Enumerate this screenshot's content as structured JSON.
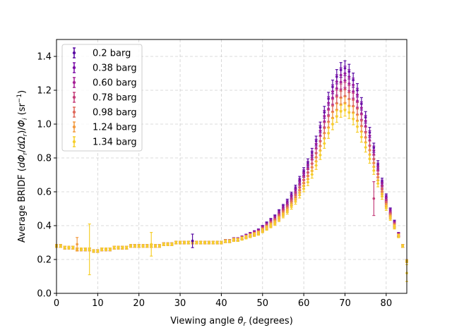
{
  "chart_data": {
    "type": "scatter",
    "title": "",
    "xlabel_parts": [
      "Viewing angle ",
      "θ",
      "r",
      " (degrees)"
    ],
    "ylabel_parts": [
      "Average BRIDF (",
      "dΦ",
      "r",
      "/",
      "dΩ",
      "r",
      ")/",
      "Φ",
      "i",
      " (sr",
      "−1",
      ")"
    ],
    "xlim": [
      0,
      85
    ],
    "ylim": [
      0,
      1.5
    ],
    "xticks": [
      0,
      10,
      20,
      30,
      40,
      50,
      60,
      70,
      80
    ],
    "yticks": [
      0.0,
      0.2,
      0.4,
      0.6,
      0.8,
      1.0,
      1.2,
      1.4
    ],
    "xtick_labels": [
      "0",
      "10",
      "20",
      "30",
      "40",
      "50",
      "60",
      "70",
      "80"
    ],
    "ytick_labels": [
      "0.0",
      "0.2",
      "0.4",
      "0.6",
      "0.8",
      "1.0",
      "1.2",
      "1.4"
    ],
    "grid": true,
    "grid_style": "dashed",
    "legend_position": "top-left",
    "error_bars": true,
    "x": [
      0,
      1,
      2,
      3,
      4,
      5,
      6,
      7,
      8,
      9,
      10,
      11,
      12,
      13,
      14,
      15,
      16,
      17,
      18,
      19,
      20,
      21,
      22,
      23,
      24,
      25,
      26,
      27,
      28,
      29,
      30,
      31,
      32,
      33,
      34,
      35,
      36,
      37,
      38,
      39,
      40,
      41,
      42,
      43,
      44,
      45,
      46,
      47,
      48,
      49,
      50,
      51,
      52,
      53,
      54,
      55,
      56,
      57,
      58,
      59,
      60,
      61,
      62,
      63,
      64,
      65,
      66,
      67,
      68,
      69,
      70,
      71,
      72,
      73,
      74,
      75,
      76,
      77,
      78,
      79,
      80,
      81,
      82,
      83,
      84,
      85
    ],
    "series": [
      {
        "name": "0.2 barg",
        "color": "#5a0ca3",
        "scale": 1.0
      },
      {
        "name": "0.38 barg",
        "color": "#7c0fa8",
        "scale": 0.97
      },
      {
        "name": "0.60 barg",
        "color": "#a72197",
        "scale": 0.93
      },
      {
        "name": "0.78 barg",
        "color": "#c53f7b",
        "scale": 0.88
      },
      {
        "name": "0.98 barg",
        "color": "#e06a5c",
        "scale": 0.84
      },
      {
        "name": "1.24 barg",
        "color": "#f39a3f",
        "scale": 0.8
      },
      {
        "name": "1.34 barg",
        "color": "#f6cf2c",
        "scale": 0.76
      }
    ],
    "base_values": [
      0.28,
      0.28,
      0.27,
      0.27,
      0.27,
      0.26,
      0.26,
      0.26,
      0.26,
      0.25,
      0.25,
      0.26,
      0.26,
      0.26,
      0.27,
      0.27,
      0.27,
      0.27,
      0.28,
      0.28,
      0.28,
      0.28,
      0.28,
      0.28,
      0.28,
      0.28,
      0.29,
      0.29,
      0.29,
      0.3,
      0.3,
      0.3,
      0.3,
      0.3,
      0.3,
      0.3,
      0.3,
      0.3,
      0.3,
      0.3,
      0.3,
      0.31,
      0.31,
      0.32,
      0.32,
      0.33,
      0.34,
      0.35,
      0.36,
      0.37,
      0.39,
      0.41,
      0.43,
      0.45,
      0.48,
      0.51,
      0.54,
      0.58,
      0.62,
      0.67,
      0.72,
      0.77,
      0.83,
      0.9,
      0.98,
      1.07,
      1.15,
      1.22,
      1.28,
      1.32,
      1.33,
      1.31,
      1.26,
      1.2,
      1.12,
      1.04,
      0.95,
      0.86,
      0.76,
      0.66,
      0.57,
      0.49,
      0.42,
      0.35,
      0.28,
      0.19
    ],
    "outliers": [
      {
        "series": 6,
        "x": 8,
        "y": 0.26,
        "err": 0.15
      },
      {
        "series": 6,
        "x": 23,
        "y": 0.29,
        "err": 0.07
      },
      {
        "series": 5,
        "x": 5,
        "y": 0.29,
        "err": 0.04
      },
      {
        "series": 0,
        "x": 33,
        "y": 0.31,
        "err": 0.04
      },
      {
        "series": 3,
        "x": 77,
        "y": 0.56,
        "err": 0.1
      },
      {
        "series": 6,
        "x": 85,
        "y": 0.12,
        "err": 0.05
      }
    ]
  }
}
